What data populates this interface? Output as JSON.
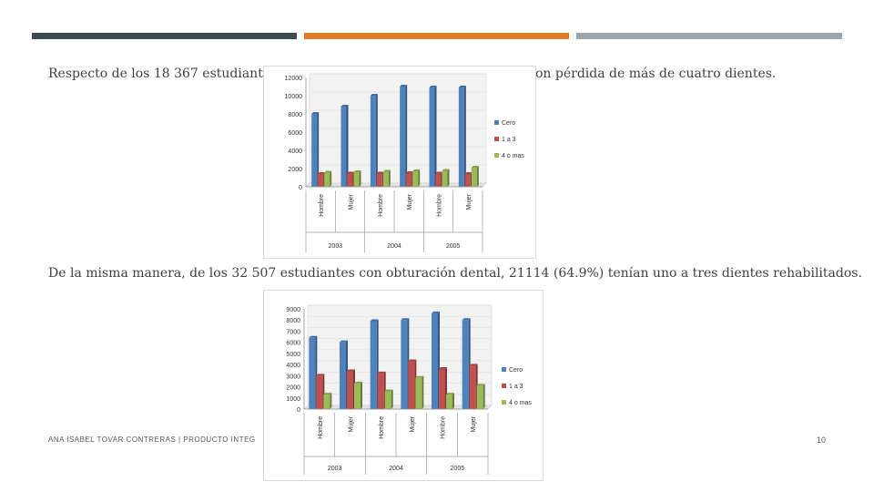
{
  "decor": {
    "bar_colors": [
      "#3d4a52",
      "#e07b2a",
      "#9aa5ab"
    ]
  },
  "paragraphs": {
    "p1": "Respecto de los 18 367 estudiantes",
    "p1_tail": "on pérdida de más de cuatro dientes.",
    "p2": "De la misma manera, de los 32 507 estudiantes con obturación dental, 21114 (64.9%) tenían uno a tres dientes rehabilitados."
  },
  "footer": {
    "author": "ANA ISABEL TOVAR CONTRERAS | PRODUCTO INTEG",
    "page": "10"
  },
  "chart_data": [
    {
      "type": "bar",
      "categories": [
        "Hombre",
        "Mujer",
        "Hombre",
        "Mujer",
        "Hombre",
        "Mujer"
      ],
      "groups": [
        "2003",
        "2004",
        "2005"
      ],
      "ylim": [
        0,
        12000
      ],
      "yticks": [
        "0",
        "2000",
        "4000",
        "6000",
        "8000",
        "10000",
        "12000"
      ],
      "series": [
        {
          "name": "Cero",
          "color": "#4f81bd",
          "values": [
            8000,
            8800,
            10000,
            11000,
            10900,
            10900
          ]
        },
        {
          "name": "1 a 3",
          "color": "#c0504d",
          "values": [
            1400,
            1450,
            1450,
            1500,
            1450,
            1400
          ]
        },
        {
          "name": "4 o mas",
          "color": "#9bbb59",
          "values": [
            1550,
            1600,
            1650,
            1700,
            1750,
            2100
          ]
        }
      ]
    },
    {
      "type": "bar",
      "categories": [
        "Hombre",
        "Mujer",
        "Hombre",
        "Mujer",
        "Hombre",
        "Mujer"
      ],
      "groups": [
        "2003",
        "2004",
        "2005"
      ],
      "ylim": [
        0,
        9000
      ],
      "yticks": [
        "0",
        "1000",
        "2000",
        "3000",
        "4000",
        "5000",
        "6000",
        "7000",
        "8000",
        "9000"
      ],
      "series": [
        {
          "name": "Cero",
          "color": "#4f81bd",
          "values": [
            6400,
            6000,
            7900,
            8000,
            8600,
            8000
          ]
        },
        {
          "name": "1 a 3",
          "color": "#c0504d",
          "values": [
            3000,
            3400,
            3200,
            4300,
            3600,
            3900
          ]
        },
        {
          "name": "4 o mas",
          "color": "#9bbb59",
          "values": [
            1300,
            2300,
            1600,
            2800,
            1300,
            2100
          ]
        }
      ]
    }
  ]
}
